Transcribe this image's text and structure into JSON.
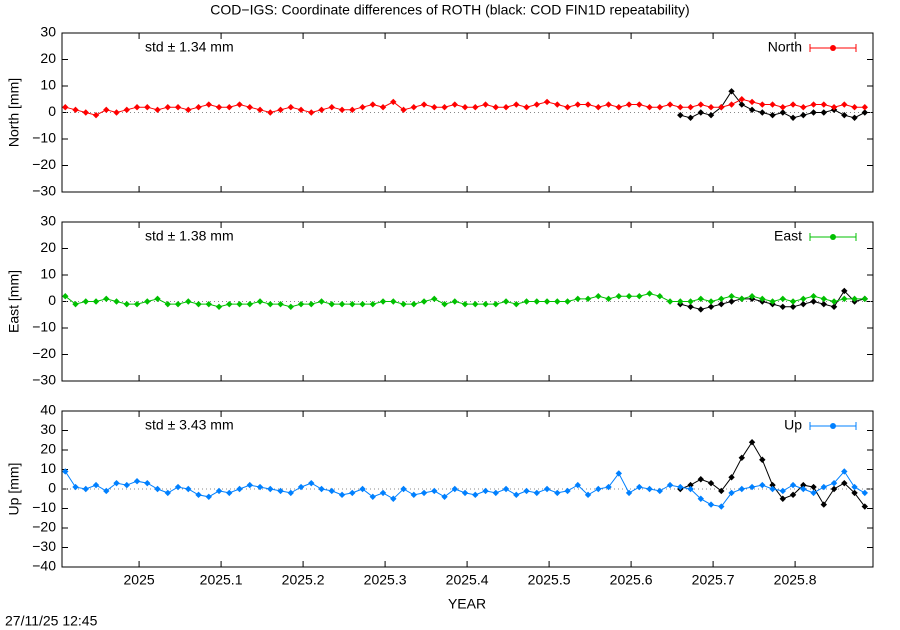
{
  "title": "COD−IGS: Coordinate differences of ROTH (black: COD FIN1D repeatability)",
  "timestamp": "27/11/25 12:45",
  "x_axis": {
    "label": "YEAR",
    "xlim": [
      2024.906,
      2025.895
    ],
    "xticks": [
      2025,
      2025.1,
      2025.2,
      2025.3,
      2025.4,
      2025.5,
      2025.6,
      2025.7,
      2025.8
    ]
  },
  "chart_data": [
    {
      "type": "line",
      "ylabel": "North [mm]",
      "annotation": "std ± 1.34 mm",
      "legend": "top-right",
      "ylim": [
        -30,
        30
      ],
      "yticks": [
        {
          "value": -30,
          "label": "−30"
        },
        {
          "value": -20,
          "label": "−20"
        },
        {
          "value": -10,
          "label": "−10"
        },
        0,
        10,
        20,
        30
      ],
      "x": [
        2024.91,
        2024.9225,
        2024.935,
        2024.9475,
        2024.96,
        2024.9725,
        2024.985,
        2024.9975,
        2025.01,
        2025.0225,
        2025.035,
        2025.0475,
        2025.06,
        2025.0725,
        2025.085,
        2025.0975,
        2025.11,
        2025.1225,
        2025.135,
        2025.1475,
        2025.16,
        2025.1725,
        2025.185,
        2025.1975,
        2025.21,
        2025.2225,
        2025.235,
        2025.2475,
        2025.26,
        2025.2725,
        2025.285,
        2025.2975,
        2025.31,
        2025.3225,
        2025.335,
        2025.3475,
        2025.36,
        2025.3725,
        2025.385,
        2025.3975,
        2025.41,
        2025.4225,
        2025.435,
        2025.4475,
        2025.46,
        2025.4725,
        2025.485,
        2025.4975,
        2025.51,
        2025.5225,
        2025.535,
        2025.5475,
        2025.56,
        2025.5725,
        2025.585,
        2025.5975,
        2025.61,
        2025.6225,
        2025.635,
        2025.6475,
        2025.66,
        2025.6725,
        2025.685,
        2025.6975,
        2025.71,
        2025.7225,
        2025.735,
        2025.7475,
        2025.76,
        2025.7725,
        2025.785,
        2025.7975,
        2025.81,
        2025.8225,
        2025.835,
        2025.8475,
        2025.86,
        2025.8725,
        2025.885
      ],
      "series": [
        {
          "name": "North",
          "color": "#ff0000",
          "values": [
            2,
            1,
            0,
            -1,
            1,
            0,
            1,
            2,
            2,
            1,
            2,
            2,
            1,
            2,
            3,
            2,
            2,
            3,
            2,
            1,
            0,
            1,
            2,
            1,
            0,
            1,
            2,
            1,
            1,
            2,
            3,
            2,
            4,
            1,
            2,
            3,
            2,
            2,
            3,
            2,
            2,
            3,
            2,
            2,
            3,
            2,
            3,
            4,
            3,
            2,
            3,
            3,
            2,
            3,
            2,
            3,
            3,
            2,
            2,
            3,
            2,
            2,
            3,
            2,
            2,
            3,
            5,
            4,
            3,
            3,
            2,
            3,
            2,
            3,
            3,
            2,
            3,
            2,
            2
          ]
        },
        {
          "color": "#000000",
          "values": [
            null,
            null,
            null,
            null,
            null,
            null,
            null,
            null,
            null,
            null,
            null,
            null,
            null,
            null,
            null,
            null,
            null,
            null,
            null,
            null,
            null,
            null,
            null,
            null,
            null,
            null,
            null,
            null,
            null,
            null,
            null,
            null,
            null,
            null,
            null,
            null,
            null,
            null,
            null,
            null,
            null,
            null,
            null,
            null,
            null,
            null,
            null,
            null,
            null,
            null,
            null,
            null,
            null,
            null,
            null,
            null,
            null,
            null,
            null,
            null,
            -1,
            -2,
            0,
            -1,
            2,
            8,
            3,
            1,
            0,
            -1,
            0,
            -2,
            -1,
            0,
            0,
            1,
            -1,
            -2,
            0
          ]
        }
      ]
    },
    {
      "type": "line",
      "ylabel": "East [mm]",
      "annotation": "std ± 1.38 mm",
      "legend": "top-right",
      "ylim": [
        -30,
        30
      ],
      "yticks": [
        {
          "value": -30,
          "label": "−30"
        },
        {
          "value": -20,
          "label": "−20"
        },
        {
          "value": -10,
          "label": "−10"
        },
        0,
        10,
        20,
        30
      ],
      "x": [
        2024.91,
        2024.9225,
        2024.935,
        2024.9475,
        2024.96,
        2024.9725,
        2024.985,
        2024.9975,
        2025.01,
        2025.0225,
        2025.035,
        2025.0475,
        2025.06,
        2025.0725,
        2025.085,
        2025.0975,
        2025.11,
        2025.1225,
        2025.135,
        2025.1475,
        2025.16,
        2025.1725,
        2025.185,
        2025.1975,
        2025.21,
        2025.2225,
        2025.235,
        2025.2475,
        2025.26,
        2025.2725,
        2025.285,
        2025.2975,
        2025.31,
        2025.3225,
        2025.335,
        2025.3475,
        2025.36,
        2025.3725,
        2025.385,
        2025.3975,
        2025.41,
        2025.4225,
        2025.435,
        2025.4475,
        2025.46,
        2025.4725,
        2025.485,
        2025.4975,
        2025.51,
        2025.5225,
        2025.535,
        2025.5475,
        2025.56,
        2025.5725,
        2025.585,
        2025.5975,
        2025.61,
        2025.6225,
        2025.635,
        2025.6475,
        2025.66,
        2025.6725,
        2025.685,
        2025.6975,
        2025.71,
        2025.7225,
        2025.735,
        2025.7475,
        2025.76,
        2025.7725,
        2025.785,
        2025.7975,
        2025.81,
        2025.8225,
        2025.835,
        2025.8475,
        2025.86,
        2025.8725,
        2025.885
      ],
      "series": [
        {
          "name": "East",
          "color": "#00c000",
          "values": [
            2,
            -1,
            0,
            0,
            1,
            0,
            -1,
            -1,
            0,
            1,
            -1,
            -1,
            0,
            -1,
            -1,
            -2,
            -1,
            -1,
            -1,
            0,
            -1,
            -1,
            -2,
            -1,
            -1,
            0,
            -1,
            -1,
            -1,
            -1,
            -1,
            0,
            0,
            -1,
            -1,
            0,
            1,
            -1,
            0,
            -1,
            -1,
            -1,
            -1,
            0,
            -1,
            0,
            0,
            0,
            0,
            0,
            1,
            1,
            2,
            1,
            2,
            2,
            2,
            3,
            2,
            0,
            0,
            0,
            1,
            0,
            1,
            2,
            1,
            2,
            1,
            0,
            1,
            0,
            1,
            2,
            1,
            0,
            1,
            1,
            1
          ]
        },
        {
          "color": "#000000",
          "values": [
            null,
            null,
            null,
            null,
            null,
            null,
            null,
            null,
            null,
            null,
            null,
            null,
            null,
            null,
            null,
            null,
            null,
            null,
            null,
            null,
            null,
            null,
            null,
            null,
            null,
            null,
            null,
            null,
            null,
            null,
            null,
            null,
            null,
            null,
            null,
            null,
            null,
            null,
            null,
            null,
            null,
            null,
            null,
            null,
            null,
            null,
            null,
            null,
            null,
            null,
            null,
            null,
            null,
            null,
            null,
            null,
            null,
            null,
            null,
            null,
            -1,
            -2,
            -3,
            -2,
            -1,
            0,
            1,
            1,
            0,
            -1,
            -2,
            -2,
            -1,
            0,
            -1,
            -2,
            4,
            0,
            1
          ]
        }
      ]
    },
    {
      "type": "line",
      "ylabel": "Up [mm]",
      "annotation": "std ± 3.43 mm",
      "legend": "top-right",
      "ylim": [
        -40,
        40
      ],
      "yticks": [
        {
          "value": -40,
          "label": "−40"
        },
        {
          "value": -30,
          "label": "−30"
        },
        {
          "value": -20,
          "label": "−20"
        },
        {
          "value": -10,
          "label": "−10"
        },
        0,
        10,
        20,
        30,
        40
      ],
      "x": [
        2024.91,
        2024.9225,
        2024.935,
        2024.9475,
        2024.96,
        2024.9725,
        2024.985,
        2024.9975,
        2025.01,
        2025.0225,
        2025.035,
        2025.0475,
        2025.06,
        2025.0725,
        2025.085,
        2025.0975,
        2025.11,
        2025.1225,
        2025.135,
        2025.1475,
        2025.16,
        2025.1725,
        2025.185,
        2025.1975,
        2025.21,
        2025.2225,
        2025.235,
        2025.2475,
        2025.26,
        2025.2725,
        2025.285,
        2025.2975,
        2025.31,
        2025.3225,
        2025.335,
        2025.3475,
        2025.36,
        2025.3725,
        2025.385,
        2025.3975,
        2025.41,
        2025.4225,
        2025.435,
        2025.4475,
        2025.46,
        2025.4725,
        2025.485,
        2025.4975,
        2025.51,
        2025.5225,
        2025.535,
        2025.5475,
        2025.56,
        2025.5725,
        2025.585,
        2025.5975,
        2025.61,
        2025.6225,
        2025.635,
        2025.6475,
        2025.66,
        2025.6725,
        2025.685,
        2025.6975,
        2025.71,
        2025.7225,
        2025.735,
        2025.7475,
        2025.76,
        2025.7725,
        2025.785,
        2025.7975,
        2025.81,
        2025.8225,
        2025.835,
        2025.8475,
        2025.86,
        2025.8725,
        2025.885
      ],
      "series": [
        {
          "name": "Up",
          "color": "#0080ff",
          "values": [
            9,
            1,
            0,
            2,
            -1,
            3,
            2,
            4,
            3,
            0,
            -2,
            1,
            0,
            -3,
            -4,
            -1,
            -2,
            0,
            2,
            1,
            0,
            -1,
            -2,
            1,
            3,
            0,
            -1,
            -3,
            -2,
            0,
            -4,
            -2,
            -5,
            0,
            -3,
            -2,
            -1,
            -4,
            0,
            -2,
            -3,
            -1,
            -2,
            0,
            -3,
            -1,
            -2,
            0,
            -2,
            -1,
            2,
            -3,
            0,
            1,
            8,
            -2,
            1,
            0,
            -1,
            2,
            1,
            0,
            -5,
            -8,
            -9,
            -2,
            0,
            1,
            2,
            0,
            -1,
            2,
            0,
            -2,
            1,
            3,
            9,
            1,
            -2
          ]
        },
        {
          "color": "#000000",
          "values": [
            null,
            null,
            null,
            null,
            null,
            null,
            null,
            null,
            null,
            null,
            null,
            null,
            null,
            null,
            null,
            null,
            null,
            null,
            null,
            null,
            null,
            null,
            null,
            null,
            null,
            null,
            null,
            null,
            null,
            null,
            null,
            null,
            null,
            null,
            null,
            null,
            null,
            null,
            null,
            null,
            null,
            null,
            null,
            null,
            null,
            null,
            null,
            null,
            null,
            null,
            null,
            null,
            null,
            null,
            null,
            null,
            null,
            null,
            null,
            null,
            0,
            2,
            5,
            3,
            -1,
            6,
            16,
            24,
            15,
            2,
            -5,
            -3,
            2,
            1,
            -8,
            0,
            3,
            -2,
            -9
          ]
        }
      ]
    }
  ]
}
